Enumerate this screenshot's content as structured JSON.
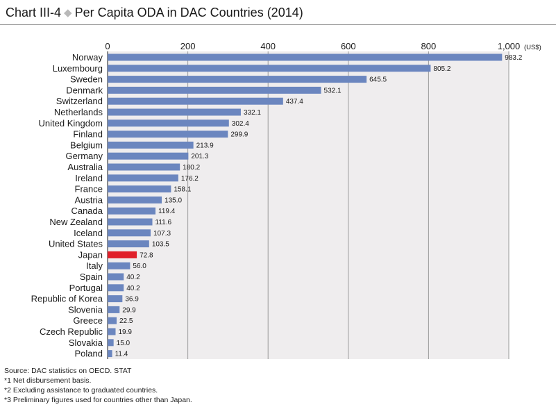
{
  "title": {
    "prefix": "Chart III-4",
    "separator": "◆",
    "text": "Per Capita ODA in DAC Countries (2014)"
  },
  "notes": [
    "Source: DAC statistics on OECD. STAT",
    "*1  Net disbursement basis.",
    "*2  Excluding assistance to graduated countries.",
    "*3  Preliminary figures used for countries other than Japan."
  ],
  "colors": {
    "bar": "#6b86bf",
    "highlight": "#e0202a",
    "plot_bg": "#efedee",
    "grid": "#9a9a9a"
  },
  "chart_data": {
    "type": "bar",
    "orientation": "horizontal",
    "unit": "(US$)",
    "xlim": [
      0,
      1000
    ],
    "xticks": [
      0,
      200,
      400,
      600,
      800,
      1000
    ],
    "xtick_labels": [
      "0",
      "200",
      "400",
      "600",
      "800",
      "1,000"
    ],
    "highlight": "Japan",
    "grid": true,
    "categories": [
      "Norway",
      "Luxembourg",
      "Sweden",
      "Denmark",
      "Switzerland",
      "Netherlands",
      "United Kingdom",
      "Finland",
      "Belgium",
      "Germany",
      "Australia",
      "Ireland",
      "France",
      "Austria",
      "Canada",
      "New Zealand",
      "Iceland",
      "United States",
      "Japan",
      "Italy",
      "Spain",
      "Portugal",
      "Republic of Korea",
      "Slovenia",
      "Greece",
      "Czech Republic",
      "Slovakia",
      "Poland"
    ],
    "values": [
      983.2,
      805.2,
      645.5,
      532.1,
      437.4,
      332.1,
      302.4,
      299.9,
      213.9,
      201.3,
      180.2,
      176.2,
      158.1,
      135.0,
      119.4,
      111.6,
      107.3,
      103.5,
      72.8,
      56.0,
      40.2,
      40.2,
      36.9,
      29.9,
      22.5,
      19.9,
      15.0,
      11.4
    ],
    "value_labels": [
      "983.2",
      "805.2",
      "645.5",
      "532.1",
      "437.4",
      "332.1",
      "302.4",
      "299.9",
      "213.9",
      "201.3",
      "180.2",
      "176.2",
      "158.1",
      "135.0",
      "119.4",
      "111.6",
      "107.3",
      "103.5",
      "72.8",
      "56.0",
      "40.2",
      "40.2",
      "36.9",
      "29.9",
      "22.5",
      "19.9",
      "15.0",
      "11.4"
    ]
  }
}
